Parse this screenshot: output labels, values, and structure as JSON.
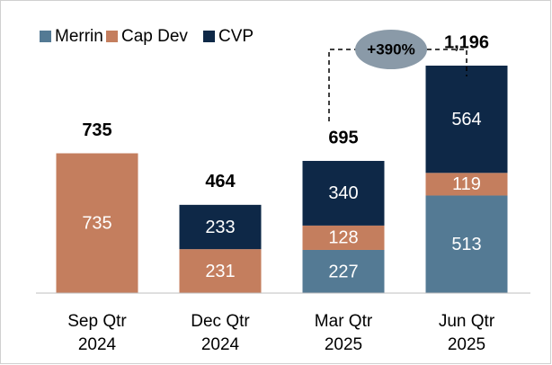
{
  "chart_data": {
    "type": "stacked_bar",
    "categories": [
      [
        "Sep Qtr",
        "2024"
      ],
      [
        "Dec Qtr",
        "2024"
      ],
      [
        "Mar Qtr",
        "2025"
      ],
      [
        "Jun Qtr",
        "2025"
      ]
    ],
    "series": [
      {
        "name": "Merrin",
        "color": "#547a94",
        "values": [
          null,
          null,
          227,
          513
        ]
      },
      {
        "name": "Cap Dev",
        "color": "#c47e5e",
        "values": [
          735,
          231,
          128,
          119
        ]
      },
      {
        "name": "CVP",
        "color": "#0e2847",
        "values": [
          null,
          233,
          340,
          564
        ]
      }
    ],
    "totals": {
      "values": [
        735,
        464,
        695,
        1196
      ],
      "value_labels": [
        "735",
        "464",
        "695",
        "1,196"
      ]
    },
    "annotation": "+390%",
    "legend": "top-left"
  }
}
